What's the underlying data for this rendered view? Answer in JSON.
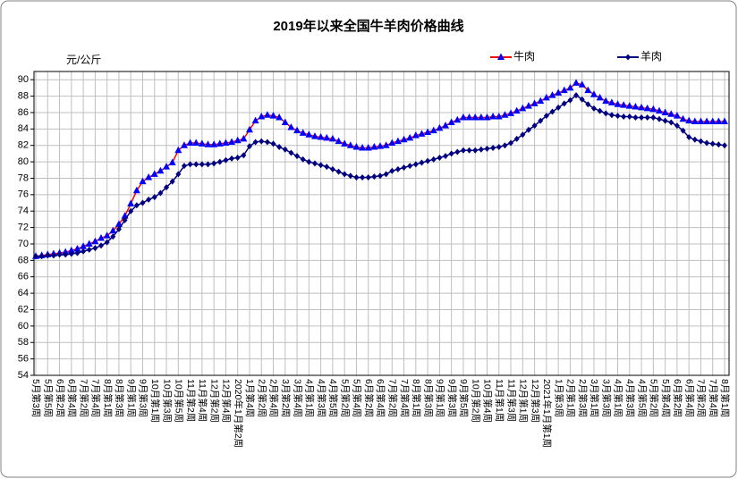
{
  "chart_data": {
    "type": "line",
    "title": "2019年以来全国牛羊肉价格曲线",
    "y_label": "元/公斤",
    "categories": [
      "5月第3周",
      null,
      "5月第5周",
      null,
      "6月第2周",
      null,
      "6月第4周",
      null,
      "7月第2周",
      null,
      "7月第4周",
      null,
      "8月第1周",
      null,
      "8月第3周",
      null,
      "9月第1周",
      null,
      "9月第3周",
      null,
      "10月第1周",
      null,
      "10月第3周",
      null,
      "10月第5周",
      null,
      "11月第2周",
      null,
      "11月第4周",
      null,
      "12月第2周",
      null,
      "12月第4周",
      null,
      "2020年1月第2周",
      null,
      "1月第4周",
      null,
      "2月第2周",
      null,
      "2月第4周",
      null,
      "3月第2周",
      null,
      "3月第4周",
      null,
      "4月第1周",
      null,
      "4月第3周",
      null,
      "4月第5周",
      null,
      "5月第2周",
      null,
      "5月第4周",
      null,
      "6月第2周",
      null,
      "6月第4周",
      null,
      "7月第2周",
      null,
      "7月第4周",
      null,
      "8月第1周",
      null,
      "8月第3周",
      null,
      "9月第1周",
      null,
      "9月第3周",
      null,
      "9月第5周",
      null,
      "10月第2周",
      null,
      "10月第4周",
      null,
      "11月第1周",
      null,
      "11月第3周",
      null,
      "12月第1周",
      null,
      "12月第3周",
      null,
      "2021年1月第1周",
      null,
      "1月第3周",
      null,
      "2月第1周",
      null,
      "2月第3周",
      null,
      "3月第1周",
      null,
      "3月第3周",
      null,
      "4月第1周",
      null,
      "4月第3周",
      null,
      "4月第5周",
      null,
      "5月第2周",
      null,
      "5月第4周",
      null,
      "6月第2周",
      null,
      "6月第4周",
      null,
      "7月第2周",
      null,
      "7月第4周",
      null,
      "8月第1周"
    ],
    "series": [
      {
        "name": "牛肉",
        "color": "#ff0000",
        "marker": "triangle",
        "marker_color": "#0000ff",
        "values": [
          68.5,
          68.6,
          68.7,
          68.8,
          68.9,
          69.0,
          69.2,
          69.4,
          69.7,
          70.0,
          70.3,
          70.7,
          71.0,
          71.6,
          72.4,
          73.4,
          74.9,
          76.5,
          77.6,
          78.1,
          78.5,
          78.9,
          79.4,
          79.9,
          81.4,
          82.0,
          82.3,
          82.3,
          82.2,
          82.1,
          82.1,
          82.2,
          82.3,
          82.4,
          82.6,
          82.8,
          83.9,
          85.0,
          85.5,
          85.7,
          85.6,
          85.4,
          84.8,
          84.2,
          83.8,
          83.5,
          83.3,
          83.1,
          83.0,
          82.9,
          82.8,
          82.5,
          82.2,
          82.0,
          81.8,
          81.7,
          81.7,
          81.8,
          81.9,
          82.0,
          82.3,
          82.5,
          82.7,
          82.9,
          83.2,
          83.4,
          83.6,
          83.8,
          84.1,
          84.4,
          84.8,
          85.1,
          85.4,
          85.4,
          85.4,
          85.4,
          85.4,
          85.5,
          85.5,
          85.7,
          85.9,
          86.2,
          86.5,
          86.8,
          87.1,
          87.4,
          87.8,
          88.1,
          88.4,
          88.7,
          89.0,
          89.6,
          89.4,
          88.7,
          88.2,
          87.8,
          87.4,
          87.2,
          87.0,
          86.9,
          86.8,
          86.7,
          86.6,
          86.5,
          86.4,
          86.2,
          86.0,
          85.8,
          85.6,
          85.2,
          85.0,
          84.9,
          84.9,
          84.9,
          84.9,
          84.9,
          84.9
        ]
      },
      {
        "name": "羊肉",
        "color": "#000080",
        "marker": "diamond",
        "marker_color": "#000080",
        "values": [
          68.5,
          68.5,
          68.6,
          68.6,
          68.7,
          68.7,
          68.8,
          68.9,
          69.1,
          69.3,
          69.5,
          69.8,
          70.2,
          70.9,
          71.8,
          72.9,
          74.0,
          74.7,
          75.0,
          75.4,
          75.7,
          76.2,
          76.9,
          77.6,
          78.5,
          79.5,
          79.7,
          79.7,
          79.7,
          79.7,
          79.8,
          80.0,
          80.2,
          80.4,
          80.5,
          80.8,
          81.9,
          82.4,
          82.5,
          82.4,
          82.2,
          81.8,
          81.5,
          81.1,
          80.7,
          80.3,
          80.0,
          79.8,
          79.6,
          79.4,
          79.1,
          78.8,
          78.5,
          78.3,
          78.1,
          78.1,
          78.1,
          78.2,
          78.3,
          78.5,
          78.9,
          79.1,
          79.3,
          79.5,
          79.7,
          79.9,
          80.1,
          80.3,
          80.5,
          80.7,
          81.0,
          81.2,
          81.4,
          81.4,
          81.4,
          81.5,
          81.6,
          81.7,
          81.8,
          82.0,
          82.3,
          82.8,
          83.3,
          83.9,
          84.4,
          85.0,
          85.6,
          86.1,
          86.6,
          87.1,
          87.5,
          88.1,
          87.6,
          87.0,
          86.5,
          86.2,
          85.9,
          85.7,
          85.6,
          85.5,
          85.5,
          85.4,
          85.4,
          85.4,
          85.4,
          85.2,
          85.0,
          84.8,
          84.4,
          83.8,
          83.0,
          82.7,
          82.5,
          82.3,
          82.2,
          82.1,
          82.0
        ]
      }
    ],
    "ylim": [
      54,
      91
    ],
    "yticks": [
      54,
      56,
      58,
      60,
      62,
      64,
      66,
      68,
      70,
      72,
      74,
      76,
      78,
      80,
      82,
      84,
      86,
      88,
      90
    ],
    "grid": true,
    "legend": "top-right"
  }
}
